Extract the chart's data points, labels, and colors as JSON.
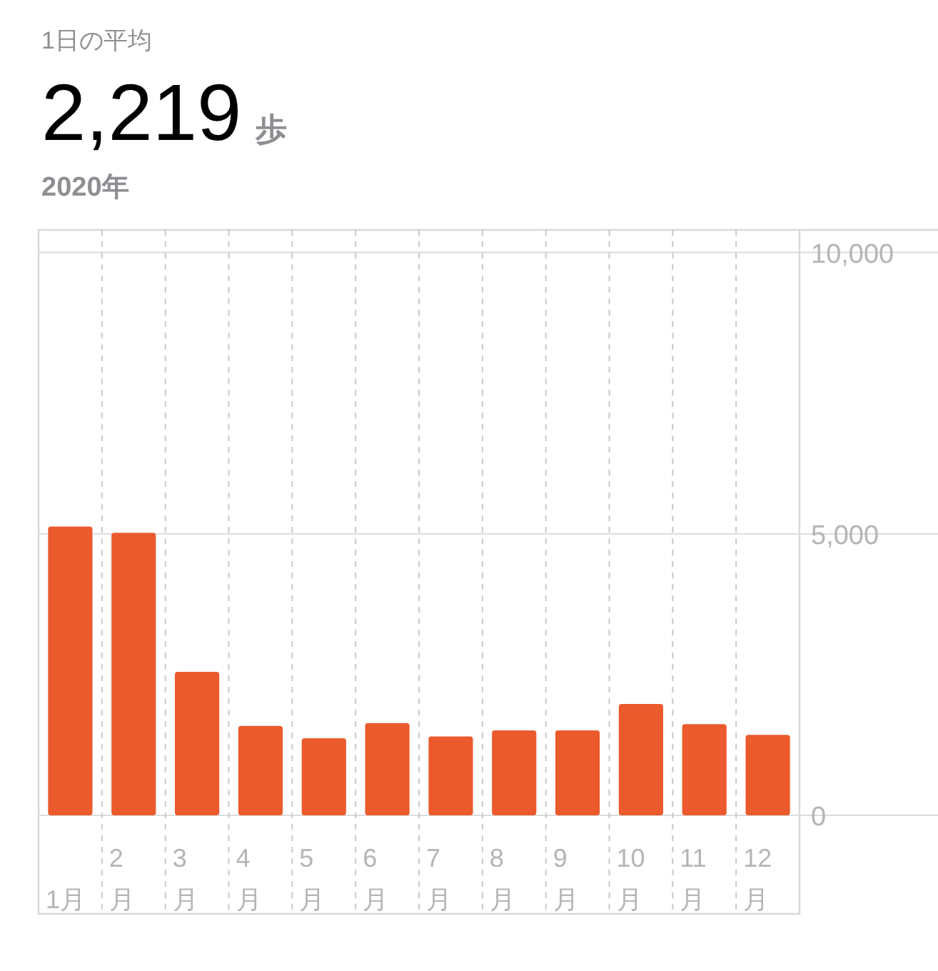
{
  "chart_data": {
    "type": "bar",
    "title": "1日の平均",
    "subtitle": "2020年",
    "annotations": [
      "2,219",
      "歩"
    ],
    "categories": [
      "1月",
      "2月",
      "3月",
      "4月",
      "5月",
      "6月",
      "7月",
      "8月",
      "9月",
      "10月",
      "11月",
      "12月"
    ],
    "values": [
      5130,
      5020,
      2550,
      1590,
      1370,
      1640,
      1400,
      1510,
      1510,
      1980,
      1620,
      1430
    ],
    "color": "#eb5a2d",
    "ylim": [
      0,
      10400
    ],
    "yticks": [
      {
        "value": 0,
        "label": "0"
      },
      {
        "value": 5000,
        "label": "5,000"
      },
      {
        "value": 10000,
        "label": "10,000"
      }
    ],
    "grid": true
  }
}
